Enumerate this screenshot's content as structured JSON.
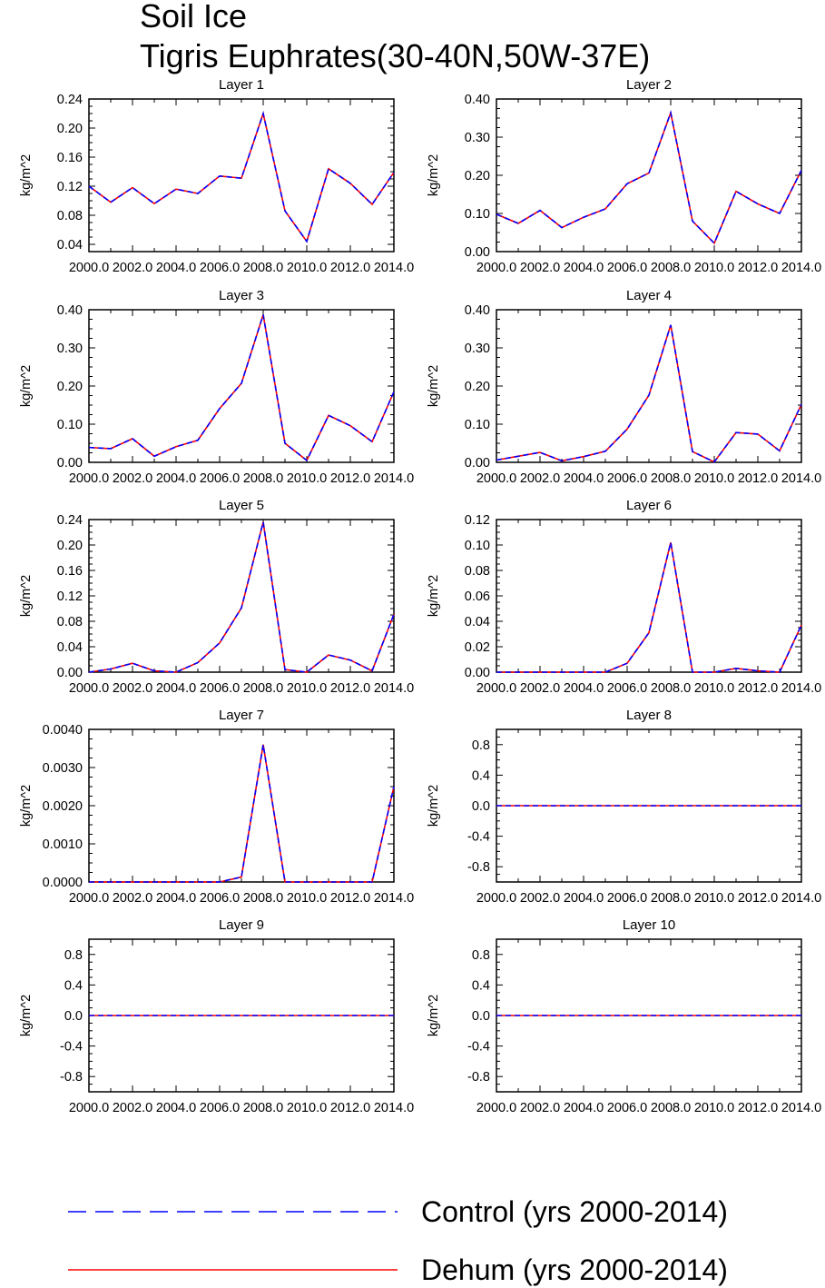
{
  "figure": {
    "title_line1": "Soil Ice",
    "title_line2": "Tigris Euphrates(30-40N,50W-37E)"
  },
  "legend": {
    "control_label": "Control (yrs 2000-2014)",
    "dehum_label": "Dehum (yrs 2000-2014)",
    "control_color": "#0000ff",
    "dehum_color": "#ff0000"
  },
  "chart_data": [
    {
      "type": "line",
      "title": "Layer 1",
      "ylabel": "kg/m^2",
      "xlim": [
        2000,
        2014
      ],
      "ylim": [
        0.03,
        0.24
      ],
      "yticks": [
        0.04,
        0.08,
        0.12,
        0.16,
        0.2,
        0.24
      ],
      "yticklabels": [
        "0.04",
        "0.08",
        "0.12",
        "0.16",
        "0.20",
        "0.24"
      ],
      "xticks": [
        2000,
        2002,
        2004,
        2006,
        2008,
        2010,
        2012,
        2014
      ],
      "xticklabels": [
        "2000.0",
        "2002.0",
        "2004.0",
        "2006.0",
        "2008.0",
        "2010.0",
        "2012.0",
        "2014.0"
      ],
      "x": [
        2000,
        2001,
        2002,
        2003,
        2004,
        2005,
        2006,
        2007,
        2008,
        2009,
        2010,
        2011,
        2012,
        2013,
        2014
      ],
      "series": [
        {
          "name": "Control (yrs 2000-2014)",
          "values": [
            0.12,
            0.098,
            0.118,
            0.096,
            0.116,
            0.11,
            0.134,
            0.131,
            0.22,
            0.086,
            0.044,
            0.144,
            0.124,
            0.095,
            0.139
          ]
        },
        {
          "name": "Dehum (yrs 2000-2014)",
          "values": [
            0.12,
            0.098,
            0.118,
            0.096,
            0.116,
            0.11,
            0.134,
            0.131,
            0.22,
            0.086,
            0.044,
            0.144,
            0.124,
            0.095,
            0.139
          ]
        }
      ]
    },
    {
      "type": "line",
      "title": "Layer 2",
      "ylabel": "kg/m^2",
      "xlim": [
        2000,
        2014
      ],
      "ylim": [
        0.0,
        0.4
      ],
      "yticks": [
        0,
        0.1,
        0.2,
        0.3,
        0.4
      ],
      "yticklabels": [
        "0.00",
        "0.10",
        "0.20",
        "0.30",
        "0.40"
      ],
      "xticks": [
        2000,
        2002,
        2004,
        2006,
        2008,
        2010,
        2012,
        2014
      ],
      "xticklabels": [
        "2000.0",
        "2002.0",
        "2004.0",
        "2006.0",
        "2008.0",
        "2010.0",
        "2012.0",
        "2014.0"
      ],
      "x": [
        2000,
        2001,
        2002,
        2003,
        2004,
        2005,
        2006,
        2007,
        2008,
        2009,
        2010,
        2011,
        2012,
        2013,
        2014
      ],
      "series": [
        {
          "name": "Control (yrs 2000-2014)",
          "values": [
            0.098,
            0.074,
            0.108,
            0.063,
            0.09,
            0.112,
            0.178,
            0.206,
            0.364,
            0.08,
            0.022,
            0.158,
            0.125,
            0.1,
            0.213
          ]
        },
        {
          "name": "Dehum (yrs 2000-2014)",
          "values": [
            0.098,
            0.074,
            0.108,
            0.063,
            0.09,
            0.112,
            0.178,
            0.206,
            0.364,
            0.08,
            0.022,
            0.158,
            0.125,
            0.1,
            0.213
          ]
        }
      ]
    },
    {
      "type": "line",
      "title": "Layer 3",
      "ylabel": "kg/m^2",
      "xlim": [
        2000,
        2014
      ],
      "ylim": [
        0.0,
        0.4
      ],
      "yticks": [
        0,
        0.1,
        0.2,
        0.3,
        0.4
      ],
      "yticklabels": [
        "0.00",
        "0.10",
        "0.20",
        "0.30",
        "0.40"
      ],
      "xticks": [
        2000,
        2002,
        2004,
        2006,
        2008,
        2010,
        2012,
        2014
      ],
      "xticklabels": [
        "2000.0",
        "2002.0",
        "2004.0",
        "2006.0",
        "2008.0",
        "2010.0",
        "2012.0",
        "2014.0"
      ],
      "x": [
        2000,
        2001,
        2002,
        2003,
        2004,
        2005,
        2006,
        2007,
        2008,
        2009,
        2010,
        2011,
        2012,
        2013,
        2014
      ],
      "series": [
        {
          "name": "Control (yrs 2000-2014)",
          "values": [
            0.039,
            0.036,
            0.062,
            0.016,
            0.041,
            0.058,
            0.141,
            0.207,
            0.387,
            0.05,
            0.005,
            0.123,
            0.096,
            0.054,
            0.185
          ]
        },
        {
          "name": "Dehum (yrs 2000-2014)",
          "values": [
            0.039,
            0.036,
            0.062,
            0.016,
            0.041,
            0.058,
            0.141,
            0.207,
            0.387,
            0.05,
            0.005,
            0.123,
            0.096,
            0.054,
            0.185
          ]
        }
      ]
    },
    {
      "type": "line",
      "title": "Layer 4",
      "ylabel": "kg/m^2",
      "xlim": [
        2000,
        2014
      ],
      "ylim": [
        0.0,
        0.4
      ],
      "yticks": [
        0,
        0.1,
        0.2,
        0.3,
        0.4
      ],
      "yticklabels": [
        "0.00",
        "0.10",
        "0.20",
        "0.30",
        "0.40"
      ],
      "xticks": [
        2000,
        2002,
        2004,
        2006,
        2008,
        2010,
        2012,
        2014
      ],
      "xticklabels": [
        "2000.0",
        "2002.0",
        "2004.0",
        "2006.0",
        "2008.0",
        "2010.0",
        "2012.0",
        "2014.0"
      ],
      "x": [
        2000,
        2001,
        2002,
        2003,
        2004,
        2005,
        2006,
        2007,
        2008,
        2009,
        2010,
        2011,
        2012,
        2013,
        2014
      ],
      "series": [
        {
          "name": "Control (yrs 2000-2014)",
          "values": [
            0.006,
            0.016,
            0.026,
            0.004,
            0.015,
            0.029,
            0.087,
            0.176,
            0.36,
            0.028,
            0.001,
            0.078,
            0.074,
            0.03,
            0.152
          ]
        },
        {
          "name": "Dehum (yrs 2000-2014)",
          "values": [
            0.006,
            0.016,
            0.026,
            0.004,
            0.015,
            0.029,
            0.087,
            0.176,
            0.36,
            0.028,
            0.001,
            0.078,
            0.074,
            0.03,
            0.152
          ]
        }
      ]
    },
    {
      "type": "line",
      "title": "Layer 5",
      "ylabel": "kg/m^2",
      "xlim": [
        2000,
        2014
      ],
      "ylim": [
        0.0,
        0.24
      ],
      "yticks": [
        0,
        0.04,
        0.08,
        0.12,
        0.16,
        0.2,
        0.24
      ],
      "yticklabels": [
        "0.00",
        "0.04",
        "0.08",
        "0.12",
        "0.16",
        "0.20",
        "0.24"
      ],
      "xticks": [
        2000,
        2002,
        2004,
        2006,
        2008,
        2010,
        2012,
        2014
      ],
      "xticklabels": [
        "2000.0",
        "2002.0",
        "2004.0",
        "2006.0",
        "2008.0",
        "2010.0",
        "2012.0",
        "2014.0"
      ],
      "x": [
        2000,
        2001,
        2002,
        2003,
        2004,
        2005,
        2006,
        2007,
        2008,
        2009,
        2010,
        2011,
        2012,
        2013,
        2014
      ],
      "series": [
        {
          "name": "Control (yrs 2000-2014)",
          "values": [
            0.0,
            0.005,
            0.014,
            0.002,
            0.0,
            0.015,
            0.046,
            0.101,
            0.236,
            0.004,
            0.0,
            0.027,
            0.019,
            0.002,
            0.091
          ]
        },
        {
          "name": "Dehum (yrs 2000-2014)",
          "values": [
            0.0,
            0.005,
            0.014,
            0.002,
            0.0,
            0.015,
            0.046,
            0.101,
            0.236,
            0.004,
            0.0,
            0.027,
            0.019,
            0.002,
            0.091
          ]
        }
      ]
    },
    {
      "type": "line",
      "title": "Layer 6",
      "ylabel": "kg/m^2",
      "xlim": [
        2000,
        2014
      ],
      "ylim": [
        0.0,
        0.12
      ],
      "yticks": [
        0,
        0.02,
        0.04,
        0.06,
        0.08,
        0.1,
        0.12
      ],
      "yticklabels": [
        "0.00",
        "0.02",
        "0.04",
        "0.06",
        "0.08",
        "0.10",
        "0.12"
      ],
      "xticks": [
        2000,
        2002,
        2004,
        2006,
        2008,
        2010,
        2012,
        2014
      ],
      "xticklabels": [
        "2000.0",
        "2002.0",
        "2004.0",
        "2006.0",
        "2008.0",
        "2010.0",
        "2012.0",
        "2014.0"
      ],
      "x": [
        2000,
        2001,
        2002,
        2003,
        2004,
        2005,
        2006,
        2007,
        2008,
        2009,
        2010,
        2011,
        2012,
        2013,
        2014
      ],
      "series": [
        {
          "name": "Control (yrs 2000-2014)",
          "values": [
            0.0,
            0.0,
            0.0,
            0.0,
            0.0,
            0.0,
            0.007,
            0.031,
            0.102,
            0.0,
            0.0,
            0.003,
            0.001,
            0.0,
            0.037
          ]
        },
        {
          "name": "Dehum (yrs 2000-2014)",
          "values": [
            0.0,
            0.0,
            0.0,
            0.0,
            0.0,
            0.0,
            0.007,
            0.031,
            0.102,
            0.0,
            0.0,
            0.003,
            0.001,
            0.0,
            0.037
          ]
        }
      ]
    },
    {
      "type": "line",
      "title": "Layer 7",
      "ylabel": "kg/m^2",
      "xlim": [
        2000,
        2014
      ],
      "ylim": [
        0.0,
        0.004
      ],
      "yticks": [
        0,
        0.001,
        0.002,
        0.003,
        0.004
      ],
      "yticklabels": [
        "0.0000",
        "0.0010",
        "0.0020",
        "0.0030",
        "0.0040"
      ],
      "xticks": [
        2000,
        2002,
        2004,
        2006,
        2008,
        2010,
        2012,
        2014
      ],
      "xticklabels": [
        "2000.0",
        "2002.0",
        "2004.0",
        "2006.0",
        "2008.0",
        "2010.0",
        "2012.0",
        "2014.0"
      ],
      "x": [
        2000,
        2001,
        2002,
        2003,
        2004,
        2005,
        2006,
        2007,
        2008,
        2009,
        2010,
        2011,
        2012,
        2013,
        2014
      ],
      "series": [
        {
          "name": "Control (yrs 2000-2014)",
          "values": [
            0,
            0,
            0,
            0,
            0,
            0,
            0,
            0.00013,
            0.0036,
            0,
            0,
            0,
            0,
            0,
            0.0025
          ]
        },
        {
          "name": "Dehum (yrs 2000-2014)",
          "values": [
            0,
            0,
            0,
            0,
            0,
            0,
            0,
            0.00013,
            0.0036,
            0,
            0,
            0,
            0,
            0,
            0.0025
          ]
        }
      ]
    },
    {
      "type": "line",
      "title": "Layer 8",
      "ylabel": "kg/m^2",
      "xlim": [
        2000,
        2014
      ],
      "ylim": [
        -1.0,
        1.0
      ],
      "yticks": [
        -0.8,
        -0.4,
        0,
        0.4,
        0.8
      ],
      "yticklabels": [
        "-0.8",
        "-0.4",
        "0.0",
        "0.4",
        "0.8"
      ],
      "xticks": [
        2000,
        2002,
        2004,
        2006,
        2008,
        2010,
        2012,
        2014
      ],
      "xticklabels": [
        "2000.0",
        "2002.0",
        "2004.0",
        "2006.0",
        "2008.0",
        "2010.0",
        "2012.0",
        "2014.0"
      ],
      "x": [
        2000,
        2001,
        2002,
        2003,
        2004,
        2005,
        2006,
        2007,
        2008,
        2009,
        2010,
        2011,
        2012,
        2013,
        2014
      ],
      "series": [
        {
          "name": "Control (yrs 2000-2014)",
          "values": [
            0,
            0,
            0,
            0,
            0,
            0,
            0,
            0,
            0,
            0,
            0,
            0,
            0,
            0,
            0
          ]
        },
        {
          "name": "Dehum (yrs 2000-2014)",
          "values": [
            0,
            0,
            0,
            0,
            0,
            0,
            0,
            0,
            0,
            0,
            0,
            0,
            0,
            0,
            0
          ]
        }
      ]
    },
    {
      "type": "line",
      "title": "Layer 9",
      "ylabel": "kg/m^2",
      "xlim": [
        2000,
        2014
      ],
      "ylim": [
        -1.0,
        1.0
      ],
      "yticks": [
        -0.8,
        -0.4,
        0,
        0.4,
        0.8
      ],
      "yticklabels": [
        "-0.8",
        "-0.4",
        "0.0",
        "0.4",
        "0.8"
      ],
      "xticks": [
        2000,
        2002,
        2004,
        2006,
        2008,
        2010,
        2012,
        2014
      ],
      "xticklabels": [
        "2000.0",
        "2002.0",
        "2004.0",
        "2006.0",
        "2008.0",
        "2010.0",
        "2012.0",
        "2014.0"
      ],
      "x": [
        2000,
        2001,
        2002,
        2003,
        2004,
        2005,
        2006,
        2007,
        2008,
        2009,
        2010,
        2011,
        2012,
        2013,
        2014
      ],
      "series": [
        {
          "name": "Control (yrs 2000-2014)",
          "values": [
            0,
            0,
            0,
            0,
            0,
            0,
            0,
            0,
            0,
            0,
            0,
            0,
            0,
            0,
            0
          ]
        },
        {
          "name": "Dehum (yrs 2000-2014)",
          "values": [
            0,
            0,
            0,
            0,
            0,
            0,
            0,
            0,
            0,
            0,
            0,
            0,
            0,
            0,
            0
          ]
        }
      ]
    },
    {
      "type": "line",
      "title": "Layer 10",
      "ylabel": "kg/m^2",
      "xlim": [
        2000,
        2014
      ],
      "ylim": [
        -1.0,
        1.0
      ],
      "yticks": [
        -0.8,
        -0.4,
        0,
        0.4,
        0.8
      ],
      "yticklabels": [
        "-0.8",
        "-0.4",
        "0.0",
        "0.4",
        "0.8"
      ],
      "xticks": [
        2000,
        2002,
        2004,
        2006,
        2008,
        2010,
        2012,
        2014
      ],
      "xticklabels": [
        "2000.0",
        "2002.0",
        "2004.0",
        "2006.0",
        "2008.0",
        "2010.0",
        "2012.0",
        "2014.0"
      ],
      "x": [
        2000,
        2001,
        2002,
        2003,
        2004,
        2005,
        2006,
        2007,
        2008,
        2009,
        2010,
        2011,
        2012,
        2013,
        2014
      ],
      "series": [
        {
          "name": "Control (yrs 2000-2014)",
          "values": [
            0,
            0,
            0,
            0,
            0,
            0,
            0,
            0,
            0,
            0,
            0,
            0,
            0,
            0,
            0
          ]
        },
        {
          "name": "Dehum (yrs 2000-2014)",
          "values": [
            0,
            0,
            0,
            0,
            0,
            0,
            0,
            0,
            0,
            0,
            0,
            0,
            0,
            0,
            0
          ]
        }
      ]
    }
  ]
}
